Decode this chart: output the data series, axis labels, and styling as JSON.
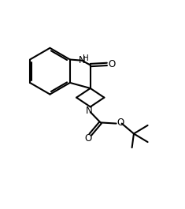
{
  "bg_color": "#ffffff",
  "line_color": "#000000",
  "lw": 1.5,
  "figsize": [
    2.35,
    2.65
  ],
  "dpi": 100,
  "xlim": [
    0,
    10
  ],
  "ylim": [
    0,
    11
  ]
}
